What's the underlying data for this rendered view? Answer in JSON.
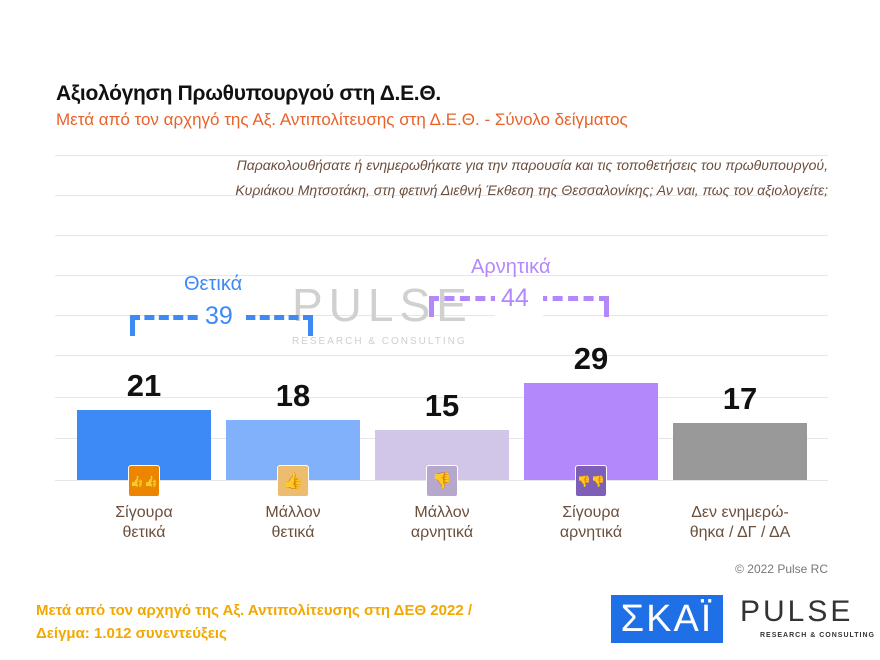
{
  "title": "Αξιολόγηση Πρωθυπουργού στη Δ.Ε.Θ.",
  "subtitle": "Μετά από τον αρχηγό της Αξ. Αντιπολίτευσης στη Δ.Ε.Θ.  -  Σύνολο δείγματος",
  "question": [
    "Παρακολουθήσατε ή ενημερωθήκατε για την παρουσία και τις τοποθετήσεις του πρωθυπουργού,",
    "Κυριάκου Μητσοτάκη, στη φετινή Διεθνή Έκθεση της Θεσσαλονίκης; Αν ναι, πως τον αξιολογείτε;"
  ],
  "chart_data": {
    "type": "bar",
    "categories": [
      [
        "Σίγουρα",
        "θετικά"
      ],
      [
        "Μάλλον",
        "θετικά"
      ],
      [
        "Μάλλον",
        "αρνητικά"
      ],
      [
        "Σίγουρα",
        "αρνητικά"
      ],
      [
        "Δεν ενημερώ-",
        "θηκα / ΔΓ / ΔΑ"
      ]
    ],
    "values": [
      21,
      18,
      15,
      29,
      17
    ],
    "colors": [
      "#3d8af7",
      "#82b1fc",
      "#d1c5e8",
      "#b388fb",
      "#999999"
    ],
    "icons": [
      {
        "name": "two-thumbs-up-icon",
        "color": "#ec8500",
        "glyph": "👍👍"
      },
      {
        "name": "thumb-up-icon",
        "color": "#ecbd6e",
        "glyph": "👍"
      },
      {
        "name": "thumb-down-icon",
        "color": "#b6a8cc",
        "glyph": "👎"
      },
      {
        "name": "two-thumbs-down-icon",
        "color": "#7e5fb8",
        "glyph": "👎👎"
      },
      null
    ],
    "groups": [
      {
        "label": "Θετικά",
        "total": "39",
        "color": "#3d8af7"
      },
      {
        "label": "Αρνητικά",
        "total": "44",
        "color": "#b388fb"
      }
    ],
    "ylim": [
      0,
      40
    ],
    "grid": true
  },
  "watermark": "PULSE",
  "copyright": "© 2022 Pulse RC",
  "footer": [
    "Μετά από τον αρχηγό της Αξ. Αντιπολίτευσης στη ΔΕΘ  2022  /",
    "Δείγμα:  1.012 συνεντεύξεις"
  ],
  "logos": {
    "skai": "ΣΚΑΪ",
    "pulse": "PULSE",
    "pulse_tag": "RESEARCH & CONSULTING"
  }
}
